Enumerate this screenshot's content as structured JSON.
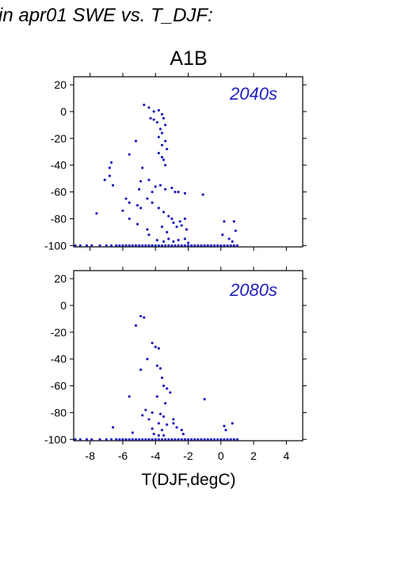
{
  "page": {
    "heading": "in apr01 SWE vs. T_DJF:"
  },
  "colors": {
    "points": "#1f1fbf",
    "axes": "#000000",
    "background": "#ffffff"
  },
  "chart_data": {
    "type": "scatter",
    "title": "A1B",
    "xlabel": "T(DJF,degC)",
    "ylabel": "",
    "xlim": [
      -9,
      5
    ],
    "ylim": [
      -101,
      26
    ],
    "x_ticks": [
      -8,
      -6,
      -4,
      -2,
      0,
      2,
      4
    ],
    "y_ticks": [
      20,
      0,
      -20,
      -40,
      -60,
      -80,
      -100
    ],
    "x_tick_labels": [
      "-8",
      "-6",
      "-4",
      "-2",
      "0",
      "2",
      "4"
    ],
    "y_tick_labels": [
      "20",
      "0",
      "-20",
      "-40",
      "-60",
      "-80",
      "-100"
    ],
    "grid": false,
    "panels": [
      {
        "label": "2040s",
        "points": [
          [
            -4.7,
            5
          ],
          [
            -4.4,
            3
          ],
          [
            -4.1,
            0
          ],
          [
            -3.8,
            1
          ],
          [
            -3.6,
            -2
          ],
          [
            -4.3,
            -5
          ],
          [
            -4.1,
            -6
          ],
          [
            -3.9,
            -8
          ],
          [
            -3.5,
            -5
          ],
          [
            -3.4,
            -10
          ],
          [
            -3.7,
            -13
          ],
          [
            -3.6,
            -16
          ],
          [
            -3.8,
            -19
          ],
          [
            -3.4,
            -22
          ],
          [
            -3.6,
            -25
          ],
          [
            -3.3,
            -28
          ],
          [
            -3.8,
            -31
          ],
          [
            -3.6,
            -34
          ],
          [
            -3.5,
            -36
          ],
          [
            -3.4,
            -40
          ],
          [
            -5.2,
            -22
          ],
          [
            -5.6,
            -32
          ],
          [
            -6.7,
            -38
          ],
          [
            -6.8,
            -42
          ],
          [
            -6.8,
            -48
          ],
          [
            -7.1,
            -51
          ],
          [
            -6.6,
            -55
          ],
          [
            -7.6,
            -76
          ],
          [
            -5.8,
            -65
          ],
          [
            -4.8,
            -42
          ],
          [
            -4.9,
            -52
          ],
          [
            -5.0,
            -58
          ],
          [
            -4.4,
            -51
          ],
          [
            -4.2,
            -60
          ],
          [
            -4.0,
            -56
          ],
          [
            -3.7,
            -55
          ],
          [
            -3.4,
            -58
          ],
          [
            -3.0,
            -57
          ],
          [
            -2.8,
            -60
          ],
          [
            -2.6,
            -60
          ],
          [
            -2.2,
            -61
          ],
          [
            -1.1,
            -62
          ],
          [
            -4.5,
            -65
          ],
          [
            -4.2,
            -68
          ],
          [
            -3.8,
            -72
          ],
          [
            -3.5,
            -75
          ],
          [
            -3.2,
            -78
          ],
          [
            -3.0,
            -80
          ],
          [
            -2.9,
            -83
          ],
          [
            -2.7,
            -86
          ],
          [
            -2.5,
            -82
          ],
          [
            -2.4,
            -85
          ],
          [
            -2.2,
            -80
          ],
          [
            -2.1,
            -88
          ],
          [
            -5.1,
            -70
          ],
          [
            -4.9,
            -72
          ],
          [
            -5.6,
            -68
          ],
          [
            -6.0,
            -74
          ],
          [
            -5.6,
            -80
          ],
          [
            -5.1,
            -84
          ],
          [
            -4.5,
            -88
          ],
          [
            -4.4,
            -92
          ],
          [
            -3.6,
            -86
          ],
          [
            -3.3,
            -90
          ],
          [
            0.2,
            -82
          ],
          [
            0.5,
            -95
          ],
          [
            0.8,
            -82
          ],
          [
            0.9,
            -89
          ],
          [
            0.7,
            -97
          ],
          [
            0.1,
            -92
          ],
          [
            -3.2,
            -95
          ],
          [
            -2.9,
            -97
          ],
          [
            -2.6,
            -96
          ],
          [
            -2.2,
            -95
          ],
          [
            -2.0,
            -98
          ],
          [
            -3.9,
            -96
          ],
          [
            -3.5,
            -97
          ]
        ],
        "baseline": {
          "y": -100,
          "x": [
            -8.9,
            -8.6,
            -8.2,
            -7.9,
            -7.4,
            -7.0,
            -6.7,
            -6.4,
            -6.2,
            -6.0,
            -5.8,
            -5.6,
            -5.4,
            -5.2,
            -5.0,
            -4.8,
            -4.6,
            -4.4,
            -4.2,
            -4.0,
            -3.8,
            -3.6,
            -3.4,
            -3.2,
            -3.0,
            -2.8,
            -2.6,
            -2.4,
            -2.2,
            -2.0,
            -1.8,
            -1.6,
            -1.4,
            -1.2,
            -1.0,
            -0.8,
            -0.6,
            -0.4,
            -0.2,
            0.0,
            0.2,
            0.4,
            0.6,
            0.8,
            1.0
          ]
        }
      },
      {
        "label": "2080s",
        "points": [
          [
            -4.9,
            -8
          ],
          [
            -4.7,
            -9
          ],
          [
            -5.2,
            -15
          ],
          [
            -4.2,
            -28
          ],
          [
            -4.0,
            -31
          ],
          [
            -3.8,
            -32
          ],
          [
            -4.5,
            -40
          ],
          [
            -3.9,
            -45
          ],
          [
            -3.7,
            -47
          ],
          [
            -4.9,
            -48
          ],
          [
            -3.6,
            -54
          ],
          [
            -3.5,
            -60
          ],
          [
            -3.3,
            -62
          ],
          [
            -3.1,
            -65
          ],
          [
            -5.6,
            -68
          ],
          [
            -1.0,
            -70
          ],
          [
            -3.9,
            -68
          ],
          [
            -3.4,
            -73
          ],
          [
            -4.6,
            -78
          ],
          [
            -4.2,
            -80
          ],
          [
            -4.8,
            -82
          ],
          [
            -3.7,
            -81
          ],
          [
            -3.5,
            -83
          ],
          [
            -2.9,
            -85
          ],
          [
            -4.4,
            -85
          ],
          [
            -3.8,
            -88
          ],
          [
            -3.3,
            -89
          ],
          [
            -2.9,
            -88
          ],
          [
            -2.7,
            -91
          ],
          [
            -2.4,
            -93
          ],
          [
            -6.6,
            -91
          ],
          [
            -4.2,
            -92
          ],
          [
            -3.6,
            -93
          ],
          [
            0.2,
            -90
          ],
          [
            0.7,
            -88
          ],
          [
            0.3,
            -93
          ],
          [
            -5.4,
            -95
          ],
          [
            -4.1,
            -96
          ],
          [
            -3.8,
            -97
          ],
          [
            -3.5,
            -97
          ],
          [
            -2.3,
            -96
          ]
        ],
        "baseline": {
          "y": -100,
          "x": [
            -8.9,
            -8.6,
            -8.2,
            -7.9,
            -7.4,
            -7.0,
            -6.7,
            -6.4,
            -6.2,
            -6.0,
            -5.8,
            -5.6,
            -5.4,
            -5.2,
            -5.0,
            -4.8,
            -4.6,
            -4.4,
            -4.2,
            -4.0,
            -3.8,
            -3.6,
            -3.4,
            -3.2,
            -3.0,
            -2.8,
            -2.6,
            -2.4,
            -2.2,
            -2.0,
            -1.8,
            -1.6,
            -1.4,
            -1.2,
            -1.0,
            -0.8,
            -0.6,
            -0.4,
            -0.2,
            0.0,
            0.2,
            0.4,
            0.6,
            0.8,
            1.0
          ]
        }
      }
    ]
  }
}
